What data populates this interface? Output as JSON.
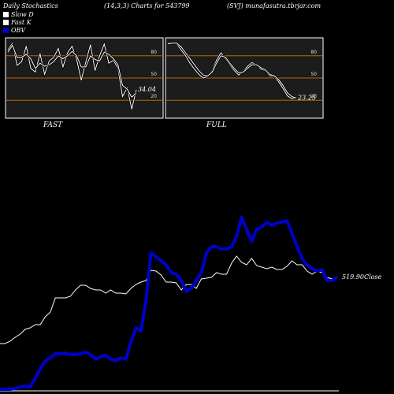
{
  "header": {
    "title": "Daily Stochastics",
    "params": "(14,3,3) Charts for 543799",
    "symbol": "(SVJ) munafasutra.tbrjar.com"
  },
  "legend": [
    {
      "label": "Slow  D",
      "color": "#ffffff"
    },
    {
      "label": "Fast K",
      "color": "#ffffff"
    },
    {
      "label": "OBV",
      "color": "#0000cc"
    }
  ],
  "colors": {
    "background": "#000000",
    "panel": "#1c1c1c",
    "level_line": "#b06a00",
    "obv": "#0000cc",
    "price": "#ffffff"
  },
  "chart_data": [
    {
      "type": "line",
      "title": "FAST",
      "ylim": [
        0,
        100
      ],
      "levels": [
        80,
        50,
        20
      ],
      "tick_labels": [
        "80",
        "50",
        "20"
      ],
      "last_value_label": "34.04",
      "series": [
        {
          "name": "Fast K",
          "values": [
            88,
            97,
            67,
            72,
            93,
            63,
            58,
            83,
            55,
            73,
            78,
            90,
            65,
            84,
            93,
            75,
            47,
            72,
            95,
            60,
            80,
            96,
            70,
            74,
            63,
            25,
            37,
            8,
            34
          ]
        },
        {
          "name": "Slow  D",
          "values": [
            85,
            94,
            78,
            78,
            82,
            76,
            63,
            70,
            66,
            68,
            72,
            80,
            76,
            80,
            86,
            80,
            65,
            65,
            80,
            75,
            73,
            85,
            82,
            76,
            68,
            40,
            35,
            24,
            30
          ]
        }
      ]
    },
    {
      "type": "line",
      "title": "FULL",
      "ylim": [
        0,
        100
      ],
      "levels": [
        80,
        50,
        20
      ],
      "tick_labels": [
        "80",
        "50",
        "20"
      ],
      "last_value_label": "23.25",
      "series": [
        {
          "name": "Fast K",
          "values": [
            97,
            98,
            96,
            88,
            80,
            70,
            62,
            55,
            50,
            52,
            60,
            74,
            84,
            76,
            68,
            60,
            54,
            59,
            66,
            71,
            68,
            62,
            60,
            53,
            52,
            45,
            36,
            26,
            22,
            23
          ]
        },
        {
          "name": "Slow  D",
          "values": [
            96,
            97,
            97,
            92,
            84,
            76,
            68,
            60,
            54,
            53,
            58,
            70,
            80,
            78,
            70,
            63,
            57,
            58,
            63,
            68,
            68,
            64,
            61,
            55,
            53,
            48,
            40,
            30,
            25,
            23
          ]
        }
      ]
    },
    {
      "type": "line",
      "title": "",
      "last_value_label": "519.90Close",
      "series": [
        {
          "name": "OBV",
          "values": [
            2,
            2,
            2,
            3,
            5,
            6,
            5,
            16,
            28,
            38,
            42,
            47,
            47,
            48,
            46,
            46,
            47,
            49,
            46,
            40,
            43,
            45,
            40,
            38,
            42,
            40,
            62,
            80,
            76,
            115,
            175,
            170,
            165,
            160,
            150,
            148,
            140,
            126,
            130,
            140,
            150,
            175,
            183,
            183,
            180,
            180,
            183,
            196,
            220,
            205,
            190,
            205,
            208,
            214,
            210,
            213,
            214,
            216,
            200,
            183,
            168,
            160,
            155,
            152,
            154,
            140,
            140,
            145
          ]
        },
        {
          "name": "Close",
          "values": [
            60,
            60,
            63,
            68,
            72,
            78,
            80,
            84,
            84,
            94,
            100,
            118,
            118,
            118,
            120,
            128,
            134,
            134,
            130,
            128,
            128,
            124,
            128,
            124,
            124,
            123,
            130,
            135,
            138,
            140,
            153,
            152,
            147,
            138,
            138,
            137,
            128,
            135,
            135,
            130,
            142,
            143,
            144,
            150,
            148,
            148,
            162,
            171,
            163,
            160,
            168,
            159,
            157,
            155,
            157,
            154,
            154,
            158,
            165,
            160,
            160,
            152,
            148,
            152,
            150,
            144,
            142,
            145
          ]
        }
      ]
    }
  ]
}
